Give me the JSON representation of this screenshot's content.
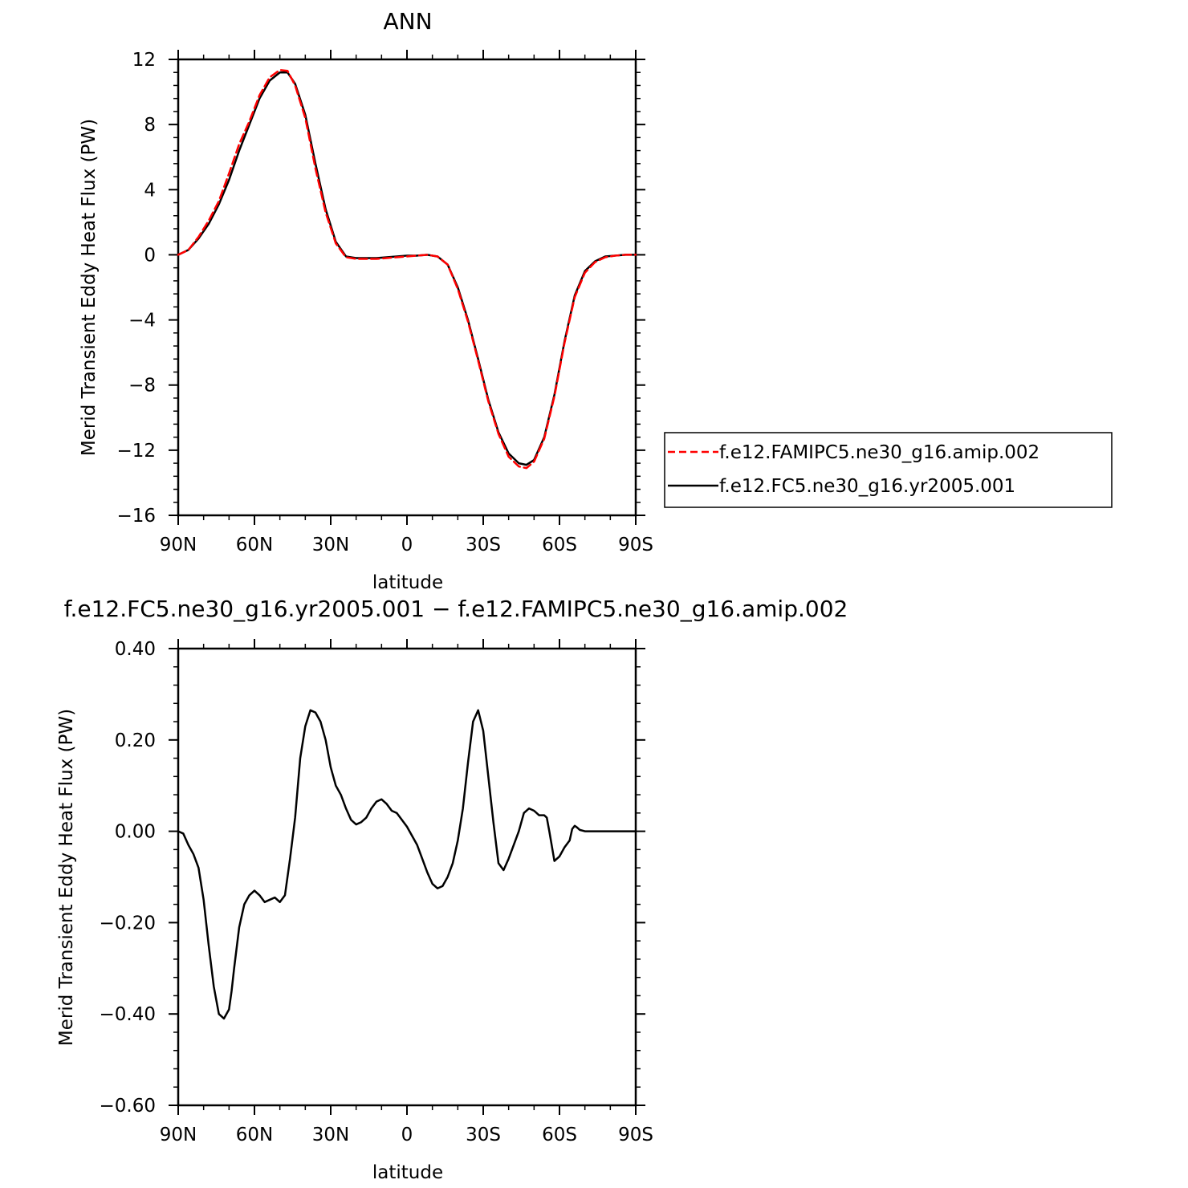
{
  "chart_data": [
    {
      "type": "line",
      "title": "ANN",
      "xlabel": "latitude",
      "ylabel": "Merid Transient Eddy Heat Flux (PW)",
      "xlim": [
        90,
        -90
      ],
      "ylim": [
        -16,
        12
      ],
      "x_ticks": [
        {
          "value": 90,
          "label": "90N"
        },
        {
          "value": 60,
          "label": "60N"
        },
        {
          "value": 30,
          "label": "30N"
        },
        {
          "value": 0,
          "label": "0"
        },
        {
          "value": -30,
          "label": "30S"
        },
        {
          "value": -60,
          "label": "60S"
        },
        {
          "value": -90,
          "label": "90S"
        }
      ],
      "y_ticks": [
        {
          "value": 12,
          "label": "12"
        },
        {
          "value": 8,
          "label": "8"
        },
        {
          "value": 4,
          "label": "4"
        },
        {
          "value": 0,
          "label": "0"
        },
        {
          "value": -4,
          "label": "−4"
        },
        {
          "value": -8,
          "label": "−8"
        },
        {
          "value": -12,
          "label": "−12"
        },
        {
          "value": -16,
          "label": "−16"
        }
      ],
      "legend": "outside right",
      "series": [
        {
          "name": "f.e12.FAMIPC5.ne30_g16.amip.002",
          "color": "#ff0000",
          "dash": "dashed",
          "x": [
            90,
            86,
            82,
            78,
            74,
            70,
            66,
            62,
            58,
            54,
            50,
            47,
            44,
            40,
            36,
            32,
            28,
            24,
            20,
            16,
            12,
            8,
            4,
            0,
            -4,
            -8,
            -12,
            -16,
            -20,
            -24,
            -28,
            -32,
            -36,
            -40,
            -44,
            -47,
            -50,
            -54,
            -58,
            -62,
            -66,
            -70,
            -74,
            -78,
            -82,
            -86,
            -90
          ],
          "y": [
            0,
            0.3,
            1.1,
            2.1,
            3.3,
            5.0,
            6.8,
            8.2,
            9.8,
            10.9,
            11.35,
            11.3,
            10.4,
            8.4,
            5.3,
            2.6,
            0.7,
            -0.15,
            -0.25,
            -0.25,
            -0.25,
            -0.2,
            -0.15,
            -0.1,
            -0.05,
            0,
            -0.1,
            -0.6,
            -2.1,
            -4.1,
            -6.5,
            -9.0,
            -11.0,
            -12.4,
            -13.0,
            -13.1,
            -12.7,
            -11.3,
            -8.7,
            -5.4,
            -2.6,
            -1.1,
            -0.45,
            -0.15,
            -0.05,
            0,
            0
          ]
        },
        {
          "name": "f.e12.FC5.ne30_g16.yr2005.001",
          "color": "#000000",
          "dash": "solid",
          "x": [
            90,
            86,
            82,
            78,
            74,
            70,
            66,
            62,
            58,
            54,
            50,
            47,
            44,
            40,
            36,
            32,
            28,
            24,
            20,
            16,
            12,
            8,
            4,
            0,
            -4,
            -8,
            -12,
            -16,
            -20,
            -24,
            -28,
            -32,
            -36,
            -40,
            -44,
            -47,
            -50,
            -54,
            -58,
            -62,
            -66,
            -70,
            -74,
            -78,
            -82,
            -86,
            -90
          ],
          "y": [
            0,
            0.3,
            1.0,
            1.9,
            3.1,
            4.6,
            6.4,
            8.0,
            9.6,
            10.7,
            11.2,
            11.2,
            10.5,
            8.6,
            5.6,
            2.8,
            0.8,
            -0.1,
            -0.2,
            -0.2,
            -0.2,
            -0.15,
            -0.1,
            -0.05,
            -0.05,
            0,
            -0.1,
            -0.6,
            -2.0,
            -4.0,
            -6.4,
            -8.9,
            -10.9,
            -12.2,
            -12.8,
            -12.9,
            -12.6,
            -11.2,
            -8.6,
            -5.3,
            -2.5,
            -1.0,
            -0.4,
            -0.1,
            -0.05,
            0,
            0
          ]
        }
      ]
    },
    {
      "type": "line",
      "title": "f.e12.FC5.ne30_g16.yr2005.001 − f.e12.FAMIPC5.ne30_g16.amip.002",
      "xlabel": "latitude",
      "ylabel": "Merid Transient Eddy Heat Flux (PW)",
      "xlim": [
        90,
        -90
      ],
      "ylim": [
        -0.6,
        0.4
      ],
      "x_ticks": [
        {
          "value": 90,
          "label": "90N"
        },
        {
          "value": 60,
          "label": "60N"
        },
        {
          "value": 30,
          "label": "30N"
        },
        {
          "value": 0,
          "label": "0"
        },
        {
          "value": -30,
          "label": "30S"
        },
        {
          "value": -60,
          "label": "60S"
        },
        {
          "value": -90,
          "label": "90S"
        }
      ],
      "y_ticks": [
        {
          "value": 0.4,
          "label": "0.40"
        },
        {
          "value": 0.2,
          "label": "0.20"
        },
        {
          "value": 0,
          "label": "0.00"
        },
        {
          "value": -0.2,
          "label": "−0.20"
        },
        {
          "value": -0.4,
          "label": "−0.40"
        },
        {
          "value": -0.6,
          "label": "−0.60"
        }
      ],
      "series": [
        {
          "color": "#000000",
          "dash": "solid",
          "x": [
            90,
            88,
            86,
            84,
            82,
            80,
            78,
            76,
            74,
            72,
            70,
            69,
            68,
            66,
            64,
            62,
            60,
            58,
            56,
            54,
            52,
            50,
            48,
            46,
            44,
            42,
            40,
            38,
            36,
            35,
            34,
            32,
            30,
            28,
            26,
            24,
            22,
            20,
            18,
            16,
            14,
            12,
            10,
            8,
            6,
            4,
            2,
            0,
            -2,
            -4,
            -6,
            -8,
            -10,
            -12,
            -14,
            -16,
            -18,
            -20,
            -22,
            -24,
            -26,
            -28,
            -30,
            -32,
            -34,
            -36,
            -38,
            -40,
            -42,
            -44,
            -46,
            -48,
            -50,
            -52,
            -54,
            -55,
            -56,
            -58,
            -60,
            -62,
            -64,
            -65,
            -66,
            -67,
            -68,
            -70,
            -72,
            -74,
            -76,
            -78,
            -80,
            -82,
            -84,
            -86,
            -88,
            -90
          ],
          "y": [
            0,
            -0.005,
            -0.03,
            -0.05,
            -0.08,
            -0.15,
            -0.25,
            -0.34,
            -0.4,
            -0.41,
            -0.39,
            -0.35,
            -0.3,
            -0.21,
            -0.16,
            -0.14,
            -0.13,
            -0.14,
            -0.155,
            -0.15,
            -0.145,
            -0.155,
            -0.14,
            -0.06,
            0.03,
            0.16,
            0.23,
            0.265,
            0.26,
            0.25,
            0.24,
            0.2,
            0.14,
            0.1,
            0.08,
            0.05,
            0.025,
            0.015,
            0.02,
            0.03,
            0.05,
            0.065,
            0.07,
            0.06,
            0.045,
            0.04,
            0.025,
            0.01,
            -0.01,
            -0.03,
            -0.06,
            -0.09,
            -0.115,
            -0.125,
            -0.12,
            -0.1,
            -0.07,
            -0.02,
            0.05,
            0.15,
            0.24,
            0.265,
            0.22,
            0.12,
            0.02,
            -0.07,
            -0.085,
            -0.06,
            -0.03,
            0,
            0.04,
            0.05,
            0.045,
            0.035,
            0.035,
            0.03,
            0,
            -0.065,
            -0.055,
            -0.035,
            -0.02,
            0.005,
            0.012,
            0.008,
            0.003,
            0,
            0,
            0,
            0,
            0,
            0,
            0,
            0,
            0,
            0,
            0
          ]
        }
      ]
    }
  ]
}
